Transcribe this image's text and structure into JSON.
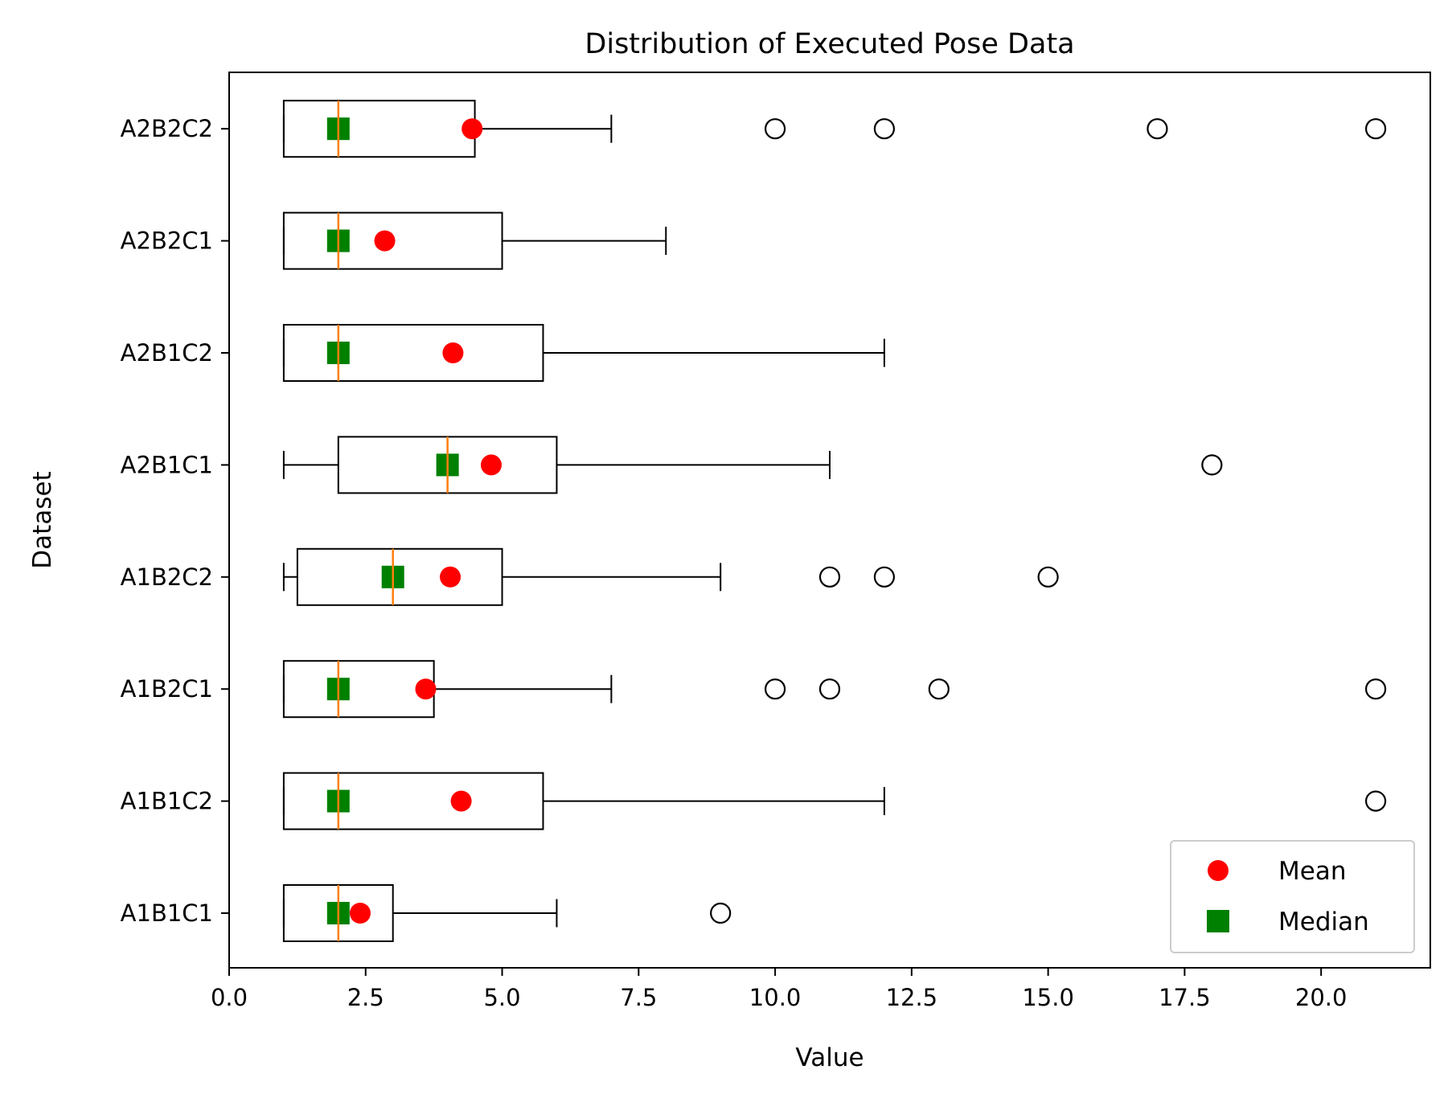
{
  "chart_data": {
    "type": "boxplot",
    "orientation": "horizontal",
    "title": "Distribution of Executed Pose Data",
    "xlabel": "Value",
    "ylabel": "Dataset",
    "xlim": [
      0,
      22
    ],
    "xticks": [
      0,
      2.5,
      5,
      7.5,
      10,
      12.5,
      15,
      17.5,
      20
    ],
    "xtick_labels": [
      "0.0",
      "2.5",
      "5.0",
      "7.5",
      "10.0",
      "12.5",
      "15.0",
      "17.5",
      "20.0"
    ],
    "grid": false,
    "legend": {
      "placement": "lower-right",
      "entries": [
        {
          "label": "Mean",
          "marker": "circle",
          "color": "#ff0000"
        },
        {
          "label": "Median",
          "marker": "square",
          "color": "#008000"
        }
      ]
    },
    "colors": {
      "box": "#000000",
      "median_line": "#ff7f0e",
      "mean": "#ff0000",
      "median_marker": "#008000"
    },
    "categories": [
      "A1B1C1",
      "A1B1C2",
      "A1B2C1",
      "A1B2C2",
      "A2B1C1",
      "A2B1C2",
      "A2B2C1",
      "A2B2C2"
    ],
    "series": [
      {
        "category": "A1B1C1",
        "whisker_low": 1,
        "q1": 1,
        "median": 2,
        "q3": 3,
        "whisker_high": 6,
        "mean": 2.4,
        "outliers": [
          9
        ]
      },
      {
        "category": "A1B1C2",
        "whisker_low": 1,
        "q1": 1,
        "median": 2,
        "q3": 5.75,
        "whisker_high": 12,
        "mean": 4.25,
        "outliers": [
          21
        ]
      },
      {
        "category": "A1B2C1",
        "whisker_low": 1,
        "q1": 1,
        "median": 2,
        "q3": 3.75,
        "whisker_high": 7,
        "mean": 3.6,
        "outliers": [
          10,
          11,
          13,
          21
        ]
      },
      {
        "category": "A1B2C2",
        "whisker_low": 1,
        "q1": 1.25,
        "median": 3,
        "q3": 5,
        "whisker_high": 9,
        "mean": 4.05,
        "outliers": [
          11,
          12,
          15
        ]
      },
      {
        "category": "A2B1C1",
        "whisker_low": 1,
        "q1": 2,
        "median": 4,
        "q3": 6,
        "whisker_high": 11,
        "mean": 4.8,
        "outliers": [
          18
        ]
      },
      {
        "category": "A2B1C2",
        "whisker_low": 1,
        "q1": 1,
        "median": 2,
        "q3": 5.75,
        "whisker_high": 12,
        "mean": 4.1,
        "outliers": []
      },
      {
        "category": "A2B2C1",
        "whisker_low": 1,
        "q1": 1,
        "median": 2,
        "q3": 5,
        "whisker_high": 8,
        "mean": 2.85,
        "outliers": []
      },
      {
        "category": "A2B2C2",
        "whisker_low": 1,
        "q1": 1,
        "median": 2,
        "q3": 4.5,
        "whisker_high": 7,
        "mean": 4.45,
        "outliers": [
          10,
          12,
          17,
          21
        ]
      }
    ]
  }
}
